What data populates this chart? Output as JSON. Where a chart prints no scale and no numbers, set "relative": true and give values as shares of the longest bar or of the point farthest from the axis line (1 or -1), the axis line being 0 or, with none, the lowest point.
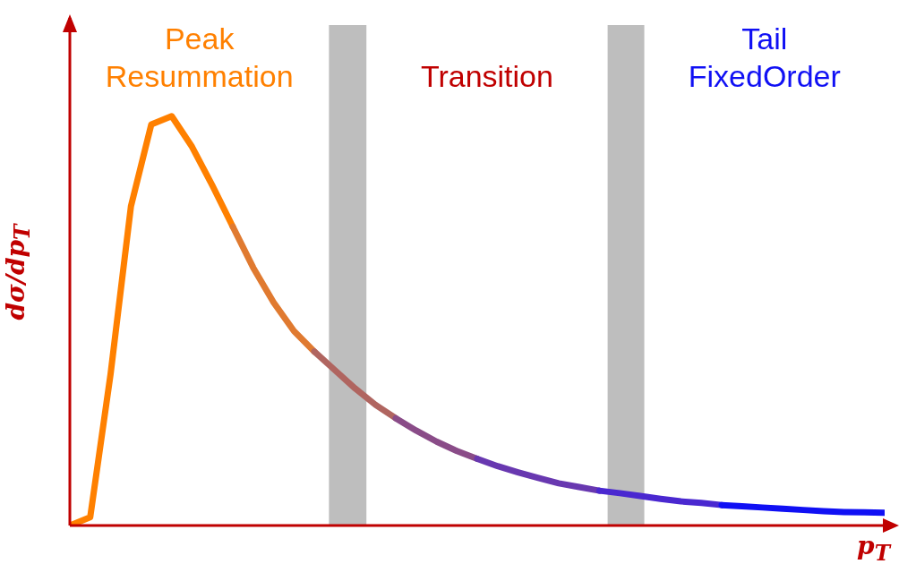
{
  "chart_data": {
    "type": "line",
    "relative": true,
    "xlabel": "p$_{T}$",
    "ylabel": "dσ/dp$_{T}$",
    "marker": "none",
    "line_style": "solid",
    "categories": [
      null,
      null,
      null,
      null,
      null,
      null,
      null,
      null,
      null,
      null,
      null,
      null,
      null,
      null,
      null,
      null,
      null,
      null,
      null,
      null,
      null,
      null,
      null,
      null,
      null,
      null,
      null,
      null,
      null,
      null,
      null,
      null,
      null,
      null,
      null,
      null,
      null,
      null,
      null,
      null,
      null
    ],
    "series": [
      {
        "color": "#ff8000",
        "values": [
          0,
          0.02,
          0.37,
          0.78,
          0.98,
          1.0,
          0.925,
          0.83,
          0.73,
          null,
          null,
          null,
          null,
          null,
          null,
          null,
          null,
          null,
          null,
          null,
          null,
          null,
          null,
          null,
          null,
          null,
          null,
          null,
          null,
          null,
          null,
          null,
          null,
          null,
          null,
          null,
          null,
          null,
          null,
          null,
          null
        ]
      },
      {
        "color": "#e07a30",
        "values": [
          null,
          null,
          null,
          null,
          null,
          null,
          null,
          null,
          0.73,
          0.63,
          0.545,
          0.475,
          0.425,
          null,
          null,
          null,
          null,
          null,
          null,
          null,
          null,
          null,
          null,
          null,
          null,
          null,
          null,
          null,
          null,
          null,
          null,
          null,
          null,
          null,
          null,
          null,
          null,
          null,
          null,
          null,
          null
        ]
      },
      {
        "color": "#b06560",
        "values": [
          null,
          null,
          null,
          null,
          null,
          null,
          null,
          null,
          null,
          null,
          null,
          null,
          0.425,
          0.38,
          0.335,
          0.295,
          0.262,
          null,
          null,
          null,
          null,
          null,
          null,
          null,
          null,
          null,
          null,
          null,
          null,
          null,
          null,
          null,
          null,
          null,
          null,
          null,
          null,
          null,
          null,
          null,
          null
        ]
      },
      {
        "color": "#8a4c88",
        "values": [
          null,
          null,
          null,
          null,
          null,
          null,
          null,
          null,
          null,
          null,
          null,
          null,
          null,
          null,
          null,
          null,
          0.262,
          0.232,
          0.205,
          0.182,
          0.163,
          null,
          null,
          null,
          null,
          null,
          null,
          null,
          null,
          null,
          null,
          null,
          null,
          null,
          null,
          null,
          null,
          null,
          null,
          null,
          null
        ]
      },
      {
        "color": "#6838b0",
        "values": [
          null,
          null,
          null,
          null,
          null,
          null,
          null,
          null,
          null,
          null,
          null,
          null,
          null,
          null,
          null,
          null,
          null,
          null,
          null,
          null,
          0.163,
          0.145,
          0.13,
          0.116,
          0.103,
          0.094,
          0.085,
          null,
          null,
          null,
          null,
          null,
          null,
          null,
          null,
          null,
          null,
          null,
          null,
          null,
          null
        ]
      },
      {
        "color": "#4a28d0",
        "values": [
          null,
          null,
          null,
          null,
          null,
          null,
          null,
          null,
          null,
          null,
          null,
          null,
          null,
          null,
          null,
          null,
          null,
          null,
          null,
          null,
          null,
          null,
          null,
          null,
          null,
          null,
          0.085,
          0.079,
          0.072,
          0.065,
          0.059,
          0.055,
          0.05,
          null,
          null,
          null,
          null,
          null,
          null,
          null,
          null
        ]
      },
      {
        "color": "#1010f4",
        "values": [
          null,
          null,
          null,
          null,
          null,
          null,
          null,
          null,
          null,
          null,
          null,
          null,
          null,
          null,
          null,
          null,
          null,
          null,
          null,
          null,
          null,
          null,
          null,
          null,
          null,
          null,
          null,
          null,
          null,
          null,
          null,
          null,
          0.05,
          0.047,
          0.044,
          0.041,
          0.038,
          0.035,
          0.033,
          0.032,
          0.031
        ]
      }
    ],
    "annotations": [
      "Peak\nResummation",
      "Transition",
      "Tail\nFixedOrder"
    ]
  }
}
